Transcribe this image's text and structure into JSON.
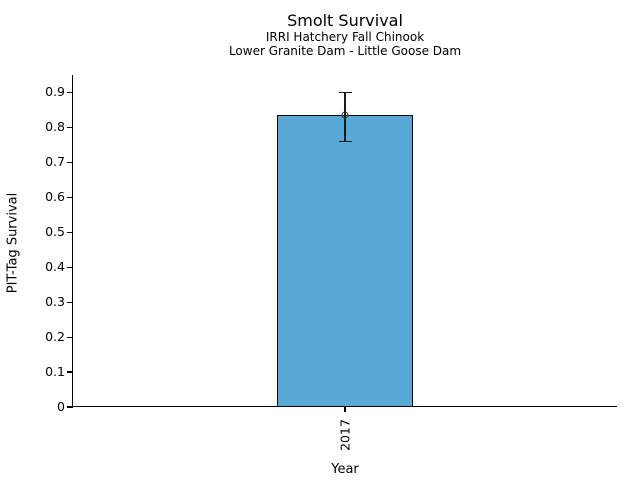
{
  "chart_data": {
    "type": "bar",
    "title": "Smolt Survival",
    "subtitle": [
      "IRRI Hatchery Fall Chinook",
      "Lower Granite Dam - Little Goose Dam"
    ],
    "xlabel": "Year",
    "ylabel": "PIT-Tag Survival",
    "categories": [
      "2017"
    ],
    "values": [
      0.835
    ],
    "error_bars": [
      {
        "low": 0.76,
        "high": 0.9
      }
    ],
    "ylim": [
      0,
      0.95
    ],
    "yticks": [
      {
        "v": 0.0,
        "label": "0"
      },
      {
        "v": 0.1,
        "label": "0.1"
      },
      {
        "v": 0.2,
        "label": "0.2"
      },
      {
        "v": 0.3,
        "label": "0.3"
      },
      {
        "v": 0.4,
        "label": "0.4"
      },
      {
        "v": 0.5,
        "label": "0.5"
      },
      {
        "v": 0.6,
        "label": "0.6"
      },
      {
        "v": 0.7,
        "label": "0.7"
      },
      {
        "v": 0.8,
        "label": "0.8"
      },
      {
        "v": 0.9,
        "label": "0.9"
      }
    ],
    "grid": false,
    "legend": false,
    "bar_width_fraction": 0.25,
    "bar_color": "#58A9D5",
    "bar_edge_color": "#000000",
    "errorbar_color": "#1a1a1a",
    "marker": "open-circle",
    "background": "#ffffff"
  }
}
